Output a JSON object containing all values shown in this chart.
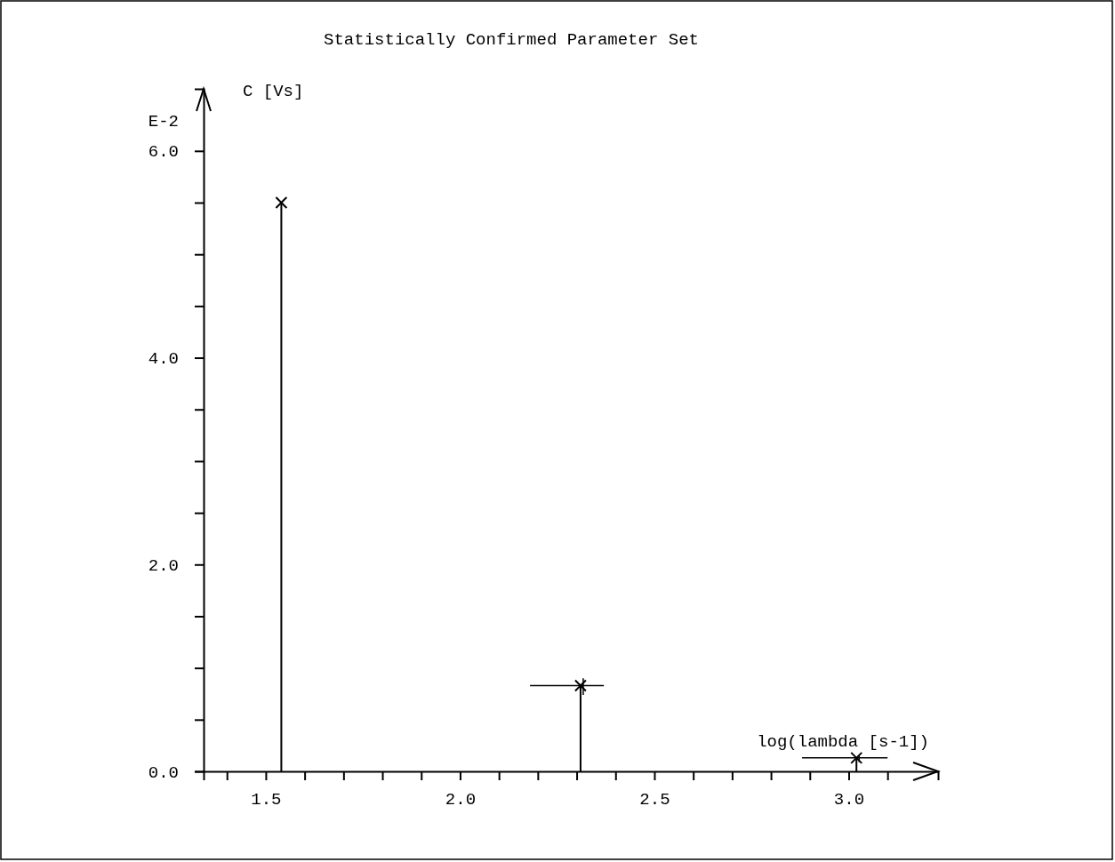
{
  "chart_data": {
    "type": "bar",
    "title": "Statistically Confirmed Parameter Set",
    "xlabel": "log(lambda [s-1])",
    "ylabel": "C [Vs]",
    "annotations": [
      "E-2"
    ],
    "x": [
      1.54,
      2.31,
      3.02
    ],
    "series": [
      {
        "color": "#000000",
        "values": [
          5.5,
          0.83,
          0.13
        ]
      },
      {
        "type": "scatter",
        "color": "#000000",
        "values": [
          5.5,
          0.83,
          0.13
        ],
        "xerrors": [
          null,
          [
            2.18,
            2.37
          ],
          [
            2.88,
            3.1
          ]
        ],
        "errors": [
          null,
          [
            0.74,
            0.9
          ],
          [
            0.09,
            0.15
          ]
        ]
      }
    ],
    "marker": "cross",
    "xlim": [
      1.34,
      3.23
    ],
    "xticks": [
      {
        "value": 1.4,
        "label": null
      },
      {
        "value": 1.5,
        "label": "1.5"
      },
      {
        "value": 1.6,
        "label": null
      },
      {
        "value": 1.7,
        "label": null
      },
      {
        "value": 1.8,
        "label": null
      },
      {
        "value": 1.9,
        "label": null
      },
      {
        "value": 2.0,
        "label": "2.0"
      },
      {
        "value": 2.1,
        "label": null
      },
      {
        "value": 2.2,
        "label": null
      },
      {
        "value": 2.3,
        "label": null
      },
      {
        "value": 2.4,
        "label": null
      },
      {
        "value": 2.5,
        "label": "2.5"
      },
      {
        "value": 2.6,
        "label": null
      },
      {
        "value": 2.7,
        "label": null
      },
      {
        "value": 2.8,
        "label": null
      },
      {
        "value": 2.9,
        "label": null
      },
      {
        "value": 3.0,
        "label": "3.0"
      },
      {
        "value": 3.1,
        "label": null
      }
    ],
    "ylim": [
      0,
      6.6
    ],
    "yticks": [
      {
        "value": 0,
        "label": "0.0"
      },
      {
        "value": 0.5,
        "label": null
      },
      {
        "value": 1.0,
        "label": null
      },
      {
        "value": 1.5,
        "label": null
      },
      {
        "value": 2.0,
        "label": "2.0"
      },
      {
        "value": 2.5,
        "label": null
      },
      {
        "value": 3.0,
        "label": null
      },
      {
        "value": 3.5,
        "label": null
      },
      {
        "value": 4.0,
        "label": "4.0"
      },
      {
        "value": 4.5,
        "label": null
      },
      {
        "value": 5.0,
        "label": null
      },
      {
        "value": 5.5,
        "label": null
      },
      {
        "value": 6.0,
        "label": "6.0"
      }
    ]
  }
}
